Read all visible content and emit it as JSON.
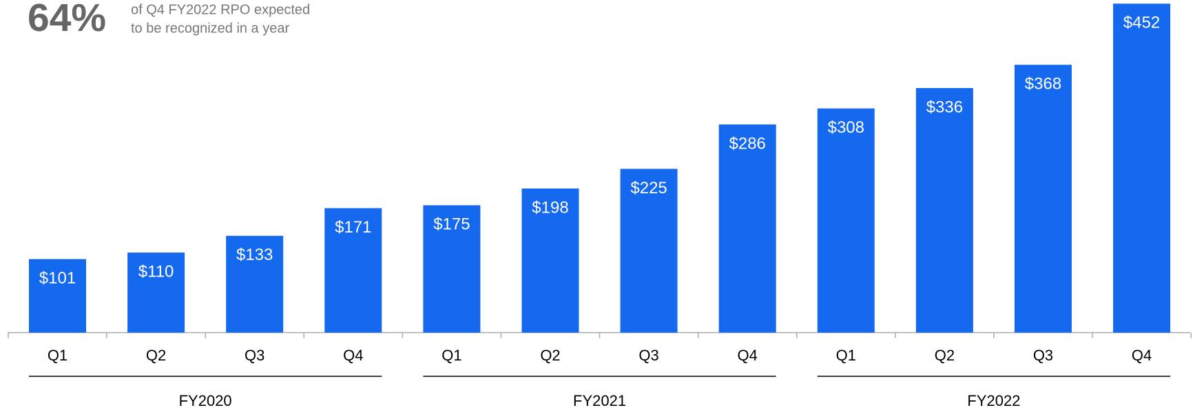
{
  "chart_data": {
    "type": "bar",
    "annotation": {
      "stat": "64%",
      "lines": [
        "of Q4 FY2022 RPO expected",
        "to be recognized in a year"
      ]
    },
    "categories": [
      "Q1",
      "Q2",
      "Q3",
      "Q4",
      "Q1",
      "Q2",
      "Q3",
      "Q4",
      "Q1",
      "Q2",
      "Q3",
      "Q4"
    ],
    "groups": [
      "FY2020",
      "FY2021",
      "FY2022"
    ],
    "values": [
      101,
      110,
      133,
      171,
      175,
      198,
      225,
      286,
      308,
      336,
      368,
      452
    ],
    "value_labels": [
      "$101",
      "$110",
      "$133",
      "$171",
      "$175",
      "$198",
      "$225",
      "$286",
      "$308",
      "$336",
      "$368",
      "$452"
    ],
    "color": "#1469ee",
    "ylim": [
      0,
      457
    ]
  }
}
